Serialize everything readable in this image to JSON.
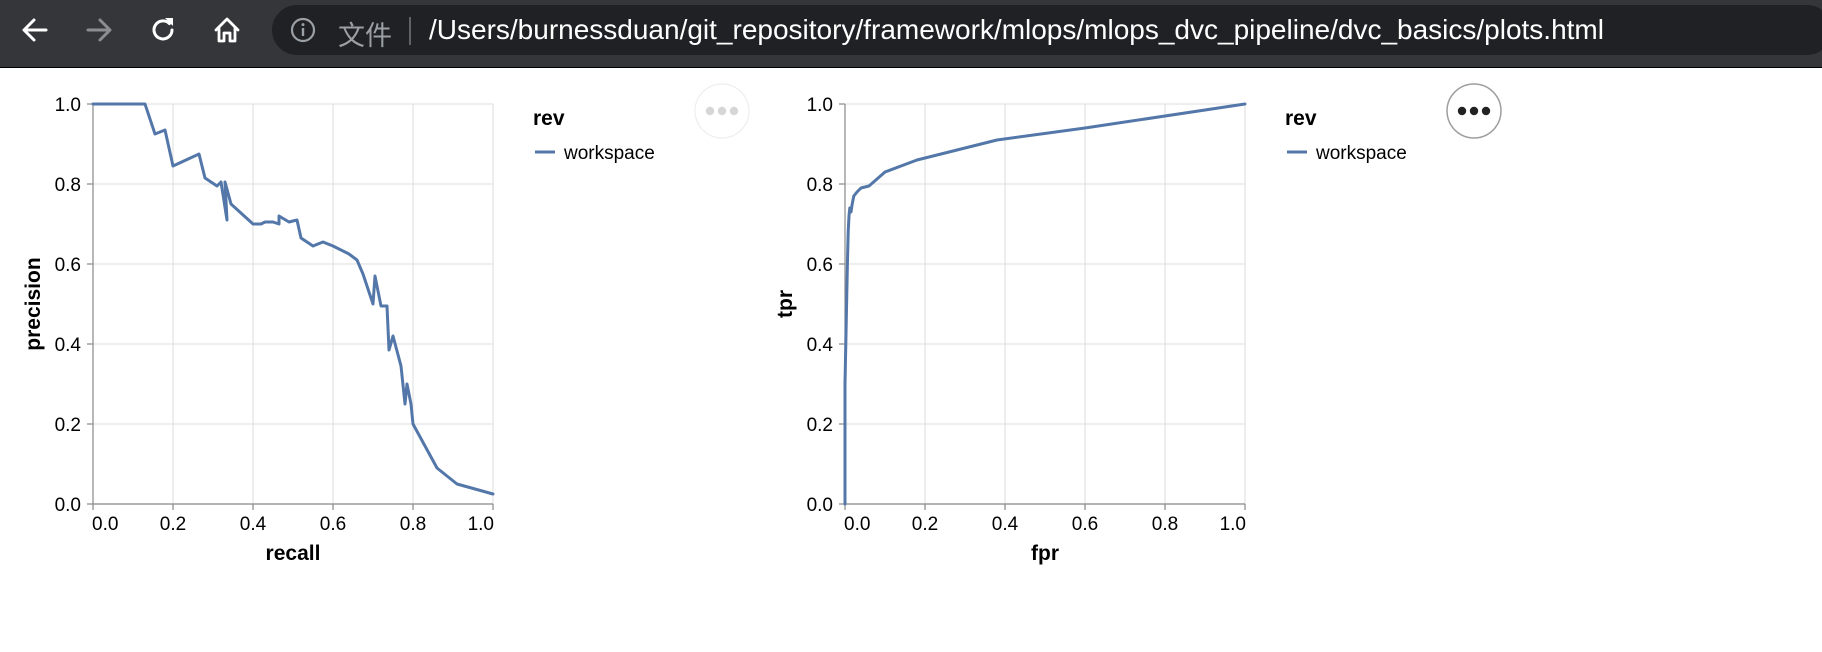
{
  "browser": {
    "back_icon": "arrow-left-icon",
    "forward_icon": "arrow-right-icon",
    "reload_icon": "reload-icon",
    "home_icon": "home-icon",
    "info_icon": "info-circle-icon",
    "secure_label": "文件",
    "url": "/Users/burnessduan/git_repository/framework/mlops/mlops_dvc_pipeline/dvc_basics/plots.html"
  },
  "colors": {
    "series": "#5477a9",
    "grid": "#dddddd",
    "toolbar_bg": "#35363a",
    "omnibox_bg": "#202124"
  },
  "chart_data": [
    {
      "type": "line",
      "xlabel": "recall",
      "ylabel": "precision",
      "xlim": [
        0,
        1
      ],
      "ylim": [
        0,
        1
      ],
      "x_ticks": [
        "0.0",
        "0.2",
        "0.4",
        "0.6",
        "0.8",
        "1.0"
      ],
      "y_ticks": [
        "0.0",
        "0.2",
        "0.4",
        "0.6",
        "0.8",
        "1.0"
      ],
      "grid": true,
      "legend_title": "rev",
      "legend_position": "right",
      "actions_icon": "more-horizontal-icon",
      "actions_active": false,
      "series": [
        {
          "name": "workspace",
          "x": [
            0.0,
            0.03,
            0.13,
            0.155,
            0.18,
            0.2,
            0.265,
            0.28,
            0.31,
            0.32,
            0.335,
            0.33,
            0.345,
            0.4,
            0.42,
            0.43,
            0.45,
            0.465,
            0.465,
            0.49,
            0.51,
            0.52,
            0.55,
            0.575,
            0.6,
            0.61,
            0.64,
            0.66,
            0.675,
            0.7,
            0.705,
            0.72,
            0.735,
            0.74,
            0.75,
            0.77,
            0.78,
            0.785,
            0.795,
            0.8,
            0.86,
            0.91,
            1.0
          ],
          "y": [
            1.0,
            1.0,
            1.0,
            0.925,
            0.935,
            0.845,
            0.875,
            0.815,
            0.795,
            0.805,
            0.71,
            0.805,
            0.75,
            0.7,
            0.7,
            0.705,
            0.705,
            0.7,
            0.72,
            0.705,
            0.71,
            0.665,
            0.645,
            0.655,
            0.645,
            0.64,
            0.625,
            0.61,
            0.575,
            0.5,
            0.57,
            0.495,
            0.495,
            0.385,
            0.42,
            0.345,
            0.25,
            0.3,
            0.25,
            0.2,
            0.09,
            0.05,
            0.025
          ]
        }
      ]
    },
    {
      "type": "line",
      "xlabel": "fpr",
      "ylabel": "tpr",
      "xlim": [
        0,
        1
      ],
      "ylim": [
        0,
        1
      ],
      "x_ticks": [
        "0.0",
        "0.2",
        "0.4",
        "0.6",
        "0.8",
        "1.0"
      ],
      "y_ticks": [
        "0.0",
        "0.2",
        "0.4",
        "0.6",
        "0.8",
        "1.0"
      ],
      "grid": true,
      "legend_title": "rev",
      "legend_position": "right",
      "actions_icon": "more-horizontal-icon",
      "actions_active": true,
      "series": [
        {
          "name": "workspace",
          "x": [
            0.0,
            0.0,
            0.004,
            0.006,
            0.008,
            0.01,
            0.012,
            0.015,
            0.018,
            0.022,
            0.03,
            0.04,
            0.06,
            0.1,
            0.18,
            0.38,
            0.6,
            1.0
          ],
          "y": [
            0.0,
            0.3,
            0.5,
            0.6,
            0.68,
            0.72,
            0.74,
            0.73,
            0.75,
            0.77,
            0.78,
            0.79,
            0.795,
            0.83,
            0.86,
            0.91,
            0.94,
            1.0
          ]
        }
      ]
    }
  ]
}
